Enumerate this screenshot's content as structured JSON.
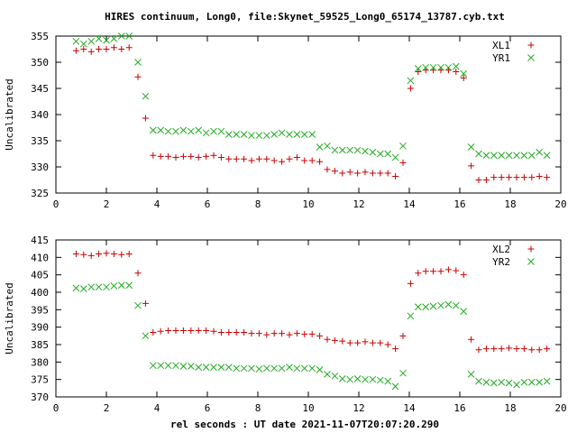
{
  "title": "HIRES continuum, Long0, file:Skynet_59525_Long0_65174_13787.cyb.txt",
  "xlabel": "rel seconds : UT date 2021-11-07T20:07:20.290",
  "colors": {
    "red": "#cc0000",
    "green": "#22aa22",
    "axis": "#000000"
  },
  "chart_data": [
    {
      "type": "scatter",
      "ylabel": "Uncalibrated",
      "xlim": [
        0,
        20
      ],
      "ylim": [
        325,
        355
      ],
      "xticks": [
        0,
        2,
        4,
        6,
        8,
        10,
        12,
        14,
        16,
        18,
        20
      ],
      "yticks": [
        325,
        330,
        335,
        340,
        345,
        350,
        355
      ],
      "legend_position": "top-right",
      "grid": false,
      "series": [
        {
          "name": "XL1",
          "marker": "plus",
          "color": "#cc0000",
          "x": [
            0.8,
            1.1,
            1.4,
            1.7,
            2.0,
            2.3,
            2.6,
            2.9,
            3.25,
            3.55,
            3.85,
            4.15,
            4.45,
            4.75,
            5.05,
            5.35,
            5.65,
            5.95,
            6.25,
            6.55,
            6.85,
            7.15,
            7.45,
            7.75,
            8.05,
            8.35,
            8.65,
            8.95,
            9.25,
            9.55,
            9.85,
            10.15,
            10.45,
            10.75,
            11.05,
            11.35,
            11.65,
            11.95,
            12.25,
            12.55,
            12.85,
            13.15,
            13.45,
            13.75,
            14.05,
            14.35,
            14.65,
            14.95,
            15.25,
            15.55,
            15.85,
            16.15,
            16.45,
            16.75,
            17.05,
            17.35,
            17.65,
            17.95,
            18.25,
            18.55,
            18.85,
            19.15,
            19.45
          ],
          "y": [
            352.2,
            352.5,
            352.0,
            352.5,
            352.5,
            352.8,
            352.5,
            352.8,
            347.2,
            339.3,
            332.2,
            332.0,
            332.0,
            331.8,
            332.0,
            332.0,
            331.8,
            332.0,
            332.2,
            331.8,
            331.5,
            331.5,
            331.5,
            331.2,
            331.5,
            331.5,
            331.2,
            331.0,
            331.5,
            331.8,
            331.2,
            331.2,
            331.0,
            329.5,
            329.2,
            328.8,
            329.0,
            328.8,
            329.0,
            328.8,
            328.8,
            328.8,
            328.2,
            330.8,
            345.0,
            348.2,
            348.5,
            348.5,
            348.5,
            348.5,
            348.2,
            347.0,
            330.2,
            327.5,
            327.5,
            328.0,
            328.0,
            328.0,
            328.0,
            328.0,
            328.0,
            328.2,
            328.0
          ]
        },
        {
          "name": "YR1",
          "marker": "cross",
          "color": "#22aa22",
          "x": [
            0.8,
            1.1,
            1.4,
            1.7,
            2.0,
            2.3,
            2.6,
            2.9,
            3.25,
            3.55,
            3.85,
            4.15,
            4.45,
            4.75,
            5.05,
            5.35,
            5.65,
            5.95,
            6.25,
            6.55,
            6.85,
            7.15,
            7.45,
            7.75,
            8.05,
            8.35,
            8.65,
            8.95,
            9.25,
            9.55,
            9.85,
            10.15,
            10.45,
            10.75,
            11.05,
            11.35,
            11.65,
            11.95,
            12.25,
            12.55,
            12.85,
            13.15,
            13.45,
            13.75,
            14.05,
            14.35,
            14.65,
            14.95,
            15.25,
            15.55,
            15.85,
            16.15,
            16.45,
            16.75,
            17.05,
            17.35,
            17.65,
            17.95,
            18.25,
            18.55,
            18.85,
            19.15,
            19.45
          ],
          "y": [
            354.0,
            353.5,
            354.0,
            354.5,
            354.2,
            354.5,
            355.0,
            355.0,
            350.0,
            343.5,
            337.0,
            337.0,
            336.8,
            336.8,
            337.0,
            336.8,
            337.0,
            336.5,
            336.8,
            336.8,
            336.2,
            336.2,
            336.2,
            336.0,
            336.0,
            336.0,
            336.2,
            336.5,
            336.2,
            336.2,
            336.2,
            336.2,
            333.8,
            334.0,
            333.2,
            333.2,
            333.2,
            333.2,
            333.0,
            332.8,
            332.5,
            332.5,
            331.8,
            334.0,
            346.5,
            348.8,
            349.0,
            349.0,
            349.0,
            349.0,
            349.2,
            347.8,
            333.8,
            332.5,
            332.2,
            332.2,
            332.2,
            332.2,
            332.2,
            332.2,
            332.2,
            332.8,
            332.2
          ]
        }
      ]
    },
    {
      "type": "scatter",
      "ylabel": "Uncalibrated",
      "xlim": [
        0,
        20
      ],
      "ylim": [
        370,
        415
      ],
      "xticks": [
        0,
        2,
        4,
        6,
        8,
        10,
        12,
        14,
        16,
        18,
        20
      ],
      "yticks": [
        370,
        375,
        380,
        385,
        390,
        395,
        400,
        405,
        410,
        415
      ],
      "legend_position": "top-right",
      "grid": false,
      "series": [
        {
          "name": "XL2",
          "marker": "plus",
          "color": "#cc0000",
          "x": [
            0.8,
            1.1,
            1.4,
            1.7,
            2.0,
            2.3,
            2.6,
            2.9,
            3.25,
            3.55,
            3.85,
            4.15,
            4.45,
            4.75,
            5.05,
            5.35,
            5.65,
            5.95,
            6.25,
            6.55,
            6.85,
            7.15,
            7.45,
            7.75,
            8.05,
            8.35,
            8.65,
            8.95,
            9.25,
            9.55,
            9.85,
            10.15,
            10.45,
            10.75,
            11.05,
            11.35,
            11.65,
            11.95,
            12.25,
            12.55,
            12.85,
            13.15,
            13.45,
            13.75,
            14.05,
            14.35,
            14.65,
            14.95,
            15.25,
            15.55,
            15.85,
            16.15,
            16.45,
            16.75,
            17.05,
            17.35,
            17.65,
            17.95,
            18.25,
            18.55,
            18.85,
            19.15,
            19.45
          ],
          "y": [
            411.0,
            410.8,
            410.5,
            411.0,
            411.2,
            411.0,
            410.8,
            411.0,
            405.5,
            396.8,
            388.5,
            388.8,
            389.0,
            389.0,
            389.0,
            389.0,
            389.0,
            389.0,
            388.8,
            388.5,
            388.5,
            388.5,
            388.5,
            388.2,
            388.2,
            387.8,
            388.2,
            388.2,
            387.8,
            388.2,
            388.0,
            388.0,
            387.5,
            386.5,
            386.2,
            386.0,
            385.5,
            385.5,
            385.8,
            385.5,
            385.5,
            385.0,
            383.8,
            387.5,
            402.5,
            405.5,
            406.0,
            406.0,
            406.0,
            406.5,
            406.2,
            405.0,
            386.5,
            383.5,
            383.8,
            383.8,
            383.8,
            384.0,
            383.8,
            383.8,
            383.5,
            383.5,
            383.8
          ]
        },
        {
          "name": "YR2",
          "marker": "cross",
          "color": "#22aa22",
          "x": [
            0.8,
            1.1,
            1.4,
            1.7,
            2.0,
            2.3,
            2.6,
            2.9,
            3.25,
            3.55,
            3.85,
            4.15,
            4.45,
            4.75,
            5.05,
            5.35,
            5.65,
            5.95,
            6.25,
            6.55,
            6.85,
            7.15,
            7.45,
            7.75,
            8.05,
            8.35,
            8.65,
            8.95,
            9.25,
            9.55,
            9.85,
            10.15,
            10.45,
            10.75,
            11.05,
            11.35,
            11.65,
            11.95,
            12.25,
            12.55,
            12.85,
            13.15,
            13.45,
            13.75,
            14.05,
            14.35,
            14.65,
            14.95,
            15.25,
            15.55,
            15.85,
            16.15,
            16.45,
            16.75,
            17.05,
            17.35,
            17.65,
            17.95,
            18.25,
            18.55,
            18.85,
            19.15,
            19.45
          ],
          "y": [
            401.2,
            401.0,
            401.5,
            401.5,
            401.5,
            401.8,
            402.0,
            402.0,
            396.2,
            387.5,
            379.0,
            379.0,
            379.0,
            379.0,
            378.8,
            378.8,
            378.5,
            378.5,
            378.5,
            378.5,
            378.5,
            378.2,
            378.2,
            378.2,
            378.0,
            378.2,
            378.2,
            378.2,
            378.5,
            378.2,
            378.2,
            378.2,
            377.8,
            376.5,
            376.0,
            375.2,
            375.0,
            375.2,
            375.0,
            375.0,
            374.8,
            374.5,
            373.0,
            376.8,
            393.2,
            395.8,
            395.8,
            396.0,
            396.2,
            396.5,
            396.2,
            394.5,
            376.5,
            374.5,
            374.2,
            374.0,
            374.2,
            374.0,
            373.5,
            374.2,
            374.2,
            374.2,
            374.5
          ]
        }
      ]
    }
  ]
}
